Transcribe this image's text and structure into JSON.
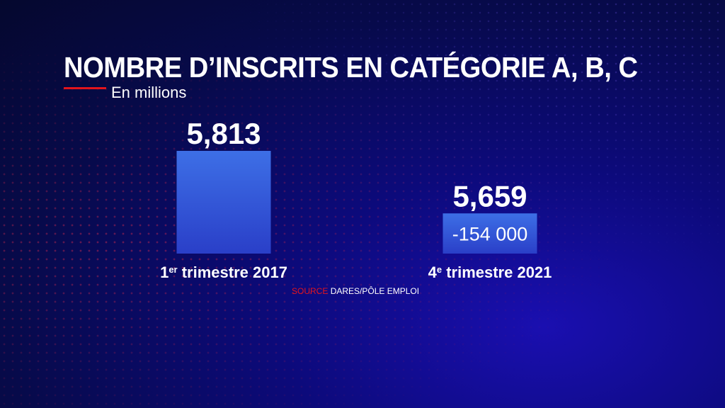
{
  "title": "NOMBRE D’INSCRITS EN CATÉGORIE A, B, C",
  "subtitle": "En millions",
  "source_label": "SOURCE",
  "source_text": "DARES/PÔLE EMPLOI",
  "difference_label": "-154 000",
  "colors": {
    "accent": "#e3141c",
    "bar_top": "#3d6fe6",
    "bar_bottom": "#2a3fc8"
  },
  "chart_data": {
    "type": "bar",
    "categories": [
      {
        "base": "1",
        "sup": "er",
        "rest": " trimestre 2017"
      },
      {
        "base": "4",
        "sup": "e",
        "rest": " trimestre 2021"
      }
    ],
    "values": [
      5.813,
      5.659
    ],
    "value_labels": [
      "5,813",
      "5,659"
    ],
    "title": "NOMBRE D’INSCRITS EN CATÉGORIE A, B, C",
    "ylabel": "En millions"
  }
}
